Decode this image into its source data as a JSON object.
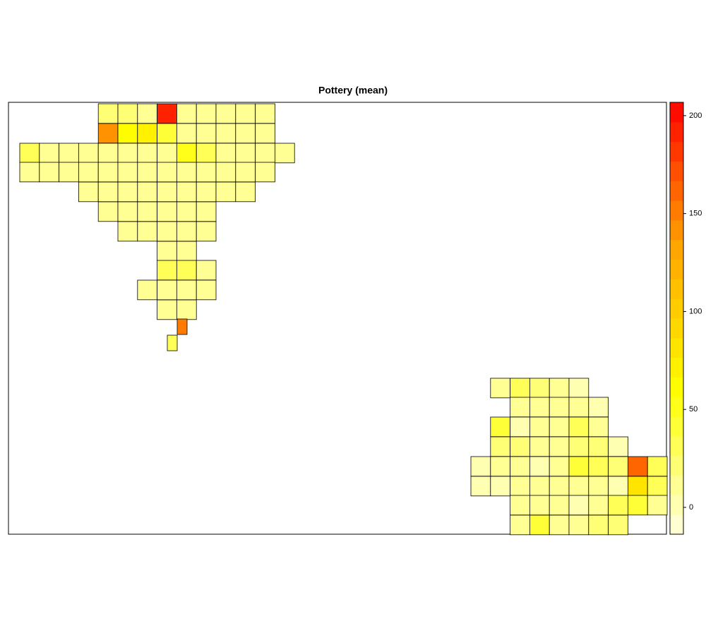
{
  "chart_data": {
    "type": "choropleth",
    "title": "Pottery (mean)",
    "values": [
      25,
      25,
      15,
      195,
      10,
      10,
      10,
      10,
      10,
      140,
      60,
      70,
      45,
      10,
      10,
      10,
      10,
      10,
      35,
      10,
      10,
      10,
      10,
      10,
      10,
      10,
      50,
      30,
      10,
      10,
      10,
      10,
      10,
      10,
      10,
      10,
      10,
      10,
      10,
      10,
      10,
      10,
      10,
      10,
      10,
      10,
      10,
      10,
      10,
      10,
      10,
      10,
      10,
      10,
      10,
      10,
      10,
      10,
      10,
      10,
      10,
      10,
      10,
      10,
      10,
      10,
      10,
      35,
      35,
      10,
      10,
      10,
      10,
      10,
      10,
      10,
      150,
      30,
      10,
      35,
      20,
      15,
      5,
      10,
      10,
      10,
      10,
      5,
      40,
      5,
      10,
      10,
      35,
      10,
      20,
      25,
      10,
      10,
      25,
      20,
      5,
      5,
      15,
      10,
      5,
      10,
      40,
      35,
      25,
      165,
      30,
      5,
      5,
      10,
      10,
      10,
      10,
      10,
      5,
      85,
      35,
      15,
      10,
      15,
      5,
      15,
      35,
      40,
      10,
      10,
      40,
      10,
      10,
      20,
      20
    ],
    "zlim": [
      -13.7,
      206.8
    ],
    "zticks": [
      0,
      50,
      100,
      150,
      200
    ],
    "colorscale": [
      "#FFFFE0",
      "#FFFF00",
      "#FFA500",
      "#FF0000"
    ],
    "colorbar_bands": 22
  }
}
